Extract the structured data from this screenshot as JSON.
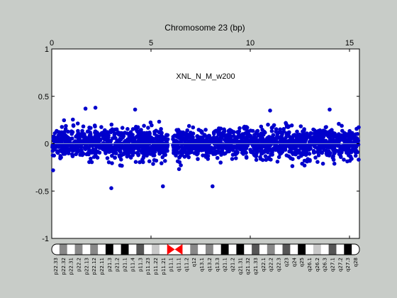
{
  "chart_data": {
    "type": "scatter",
    "title": "Chromosome 23 (bp)",
    "annotation": "XNL_N_M_w200",
    "x_ticks": [
      0,
      5,
      10,
      15
    ],
    "y_ticks": [
      1,
      0.5,
      0,
      -0.5,
      -1
    ],
    "xlim": [
      0,
      15.5
    ],
    "ylim": [
      -1,
      1
    ],
    "x_unit_note": "position in bp, axis labels in units of 10^7",
    "series": [
      {
        "color": "#0000cc",
        "description": "dense point cloud of log-ratio values",
        "segments": [
          {
            "x_start": 0.0,
            "x_end": 5.85,
            "y_center": 0.0,
            "y_spread": 0.13
          },
          {
            "x_start": 6.1,
            "x_end": 15.5,
            "y_center": 0.0,
            "y_spread": 0.13
          }
        ],
        "notable_points": [
          {
            "x": 1.7,
            "y": 0.37
          },
          {
            "x": 2.2,
            "y": 0.38
          },
          {
            "x": 3.0,
            "y": -0.47
          },
          {
            "x": 4.2,
            "y": 0.36
          },
          {
            "x": 5.6,
            "y": -0.45
          },
          {
            "x": 8.1,
            "y": -0.45
          },
          {
            "x": 11.0,
            "y": 0.35
          },
          {
            "x": 14.0,
            "y": 0.36
          }
        ]
      }
    ],
    "baseline": {
      "y": 0,
      "color": "#8899cc"
    },
    "grid": false,
    "ideogram": {
      "bands": [
        {
          "label": "p22.33",
          "stain": "gneg"
        },
        {
          "label": "p22.32",
          "stain": "gpos50"
        },
        {
          "label": "p22.31",
          "stain": "gneg"
        },
        {
          "label": "p22.2",
          "stain": "gpos50"
        },
        {
          "label": "p22.13",
          "stain": "gneg"
        },
        {
          "label": "p22.12",
          "stain": "gpos50"
        },
        {
          "label": "p22.11",
          "stain": "gneg"
        },
        {
          "label": "p21.3",
          "stain": "gpos100"
        },
        {
          "label": "p21.2",
          "stain": "gneg"
        },
        {
          "label": "p21.1",
          "stain": "gpos100"
        },
        {
          "label": "p11.4",
          "stain": "gneg"
        },
        {
          "label": "p11.3",
          "stain": "gpos75"
        },
        {
          "label": "p11.23",
          "stain": "gneg"
        },
        {
          "label": "p11.22",
          "stain": "gpos25"
        },
        {
          "label": "p11.21",
          "stain": "gneg"
        },
        {
          "label": "p11.1",
          "stain": "acen"
        },
        {
          "label": "q11.1",
          "stain": "acen"
        },
        {
          "label": "q11.2",
          "stain": "gneg"
        },
        {
          "label": "q12",
          "stain": "gpos50"
        },
        {
          "label": "q13.1",
          "stain": "gneg"
        },
        {
          "label": "q13.2",
          "stain": "gpos50"
        },
        {
          "label": "q13.3",
          "stain": "gneg"
        },
        {
          "label": "q21.1",
          "stain": "gpos100"
        },
        {
          "label": "q21.2",
          "stain": "gneg"
        },
        {
          "label": "q21.31",
          "stain": "gpos100"
        },
        {
          "label": "q21.32",
          "stain": "gneg"
        },
        {
          "label": "q21.33",
          "stain": "gpos75"
        },
        {
          "label": "q22.1",
          "stain": "gneg"
        },
        {
          "label": "q22.2",
          "stain": "gpos50"
        },
        {
          "label": "q22.3",
          "stain": "gneg"
        },
        {
          "label": "q23",
          "stain": "gpos75"
        },
        {
          "label": "q24",
          "stain": "gneg"
        },
        {
          "label": "q25",
          "stain": "gpos100"
        },
        {
          "label": "q26.1",
          "stain": "gneg"
        },
        {
          "label": "q26.2",
          "stain": "gpos25"
        },
        {
          "label": "q26.3",
          "stain": "gneg"
        },
        {
          "label": "q27.1",
          "stain": "gpos75"
        },
        {
          "label": "q27.2",
          "stain": "gneg"
        },
        {
          "label": "q27.3",
          "stain": "gpos100"
        },
        {
          "label": "q28",
          "stain": "gneg"
        }
      ]
    }
  },
  "colors": {
    "background": "#c8ccc8",
    "plot_background": "#ffffff",
    "points": "#0000cc",
    "baseline": "#8899cc",
    "centromere": "#ff0000"
  }
}
